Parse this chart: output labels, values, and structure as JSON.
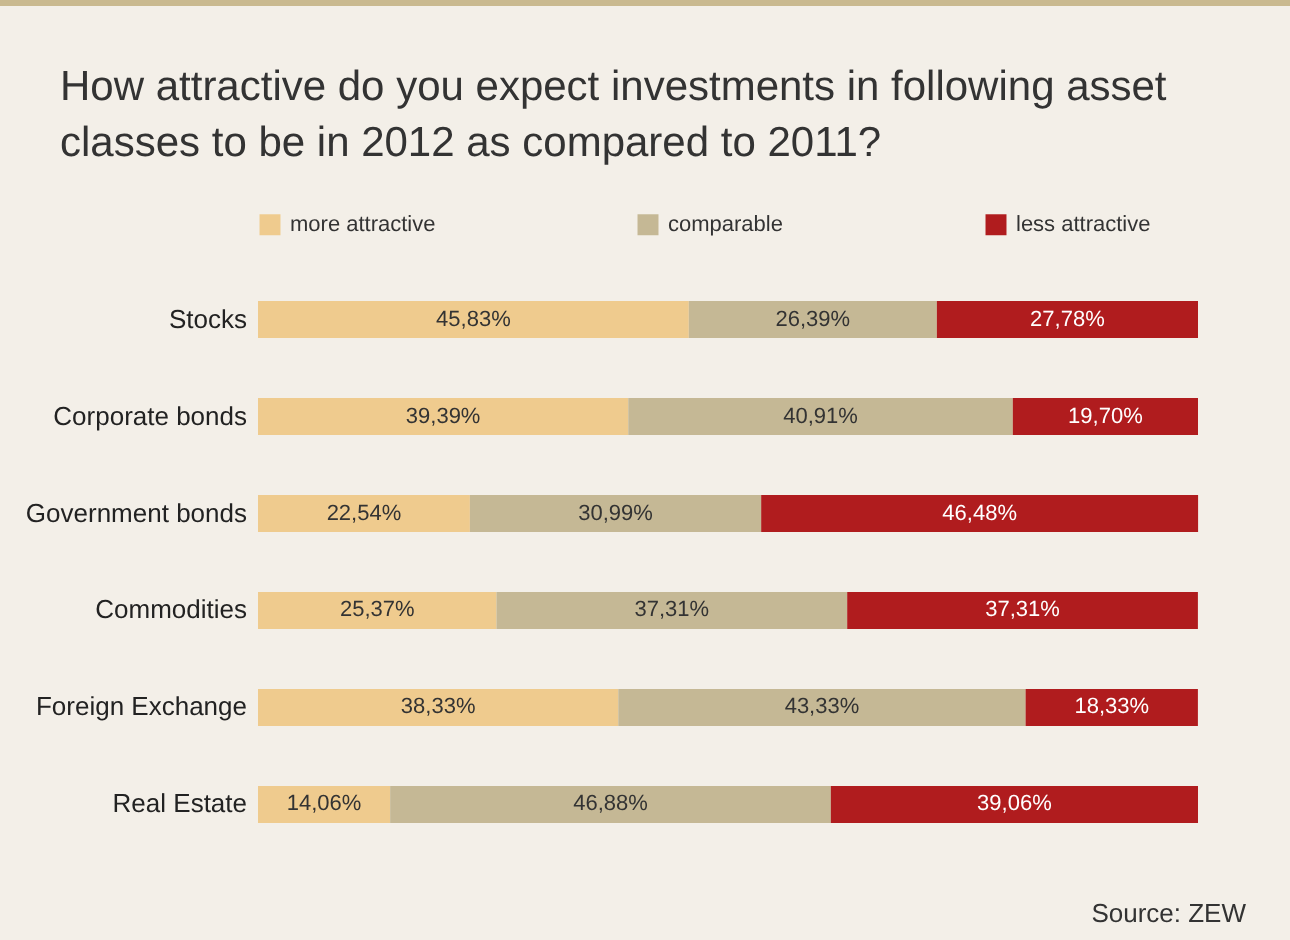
{
  "chart_data": {
    "type": "bar",
    "orientation": "horizontal",
    "stacked": true,
    "title": "How attractive do you expect investments in following asset classes to be in 2012 as compared to 2011?",
    "categories": [
      "Stocks",
      "Corporate bonds",
      "Government bonds",
      "Commodities",
      "Foreign Exchange",
      "Real Estate"
    ],
    "xlim": [
      0,
      100
    ],
    "tick_labels": "y",
    "legend": "top",
    "series": [
      {
        "name": "more attractive",
        "color": "#efcb8e",
        "values": [
          45.83,
          39.39,
          22.54,
          25.37,
          38.33,
          14.06
        ],
        "value_labels": [
          "45,83%",
          "39,39%",
          "22,54%",
          "25,37%",
          "38,33%",
          "14,06%"
        ]
      },
      {
        "name": "comparable",
        "color": "#c5b895",
        "values": [
          26.39,
          40.91,
          30.99,
          37.31,
          43.33,
          46.88
        ],
        "value_labels": [
          "26,39%",
          "40,91%",
          "30,99%",
          "37,31%",
          "43,33%",
          "46,88%"
        ]
      },
      {
        "name": "less attractive",
        "color": "#b01c1e",
        "values": [
          27.78,
          19.7,
          46.48,
          37.31,
          18.33,
          39.06
        ],
        "value_labels": [
          "27,78%",
          "19,70%",
          "46,48%",
          "37,31%",
          "18,33%",
          "39,06%"
        ]
      }
    ],
    "annotations": [
      "Source: ZEW"
    ]
  }
}
